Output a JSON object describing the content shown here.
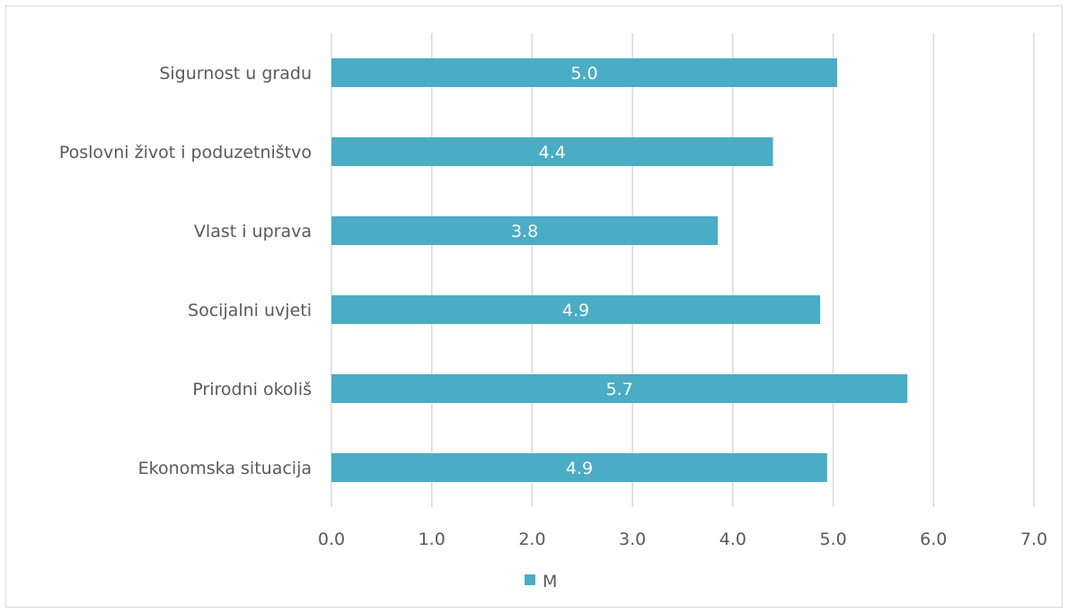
{
  "chart_data": {
    "type": "bar",
    "orientation": "horizontal",
    "categories": [
      "Sigurnost u gradu",
      "Poslovni život i poduzetništvo",
      "Vlast i uprava",
      "Socijalni uvjeti",
      "Prirodni okoliš",
      "Ekonomska situacija"
    ],
    "series": [
      {
        "name": "M",
        "values": [
          5.04,
          4.4,
          3.85,
          4.87,
          5.74,
          4.94
        ],
        "labels": [
          "5.0",
          "4.4",
          "3.8",
          "4.9",
          "5.7",
          "4.9"
        ]
      }
    ],
    "xlim": [
      0,
      7
    ],
    "xticks": [
      "0.0",
      "1.0",
      "2.0",
      "3.0",
      "4.0",
      "5.0",
      "6.0",
      "7.0"
    ],
    "grid": "vertical",
    "legend_position": "bottom",
    "colors": {
      "bar": "#4bacc6",
      "grid": "#d9d9d9",
      "text": "#595959",
      "data_label": "#ffffff"
    }
  }
}
